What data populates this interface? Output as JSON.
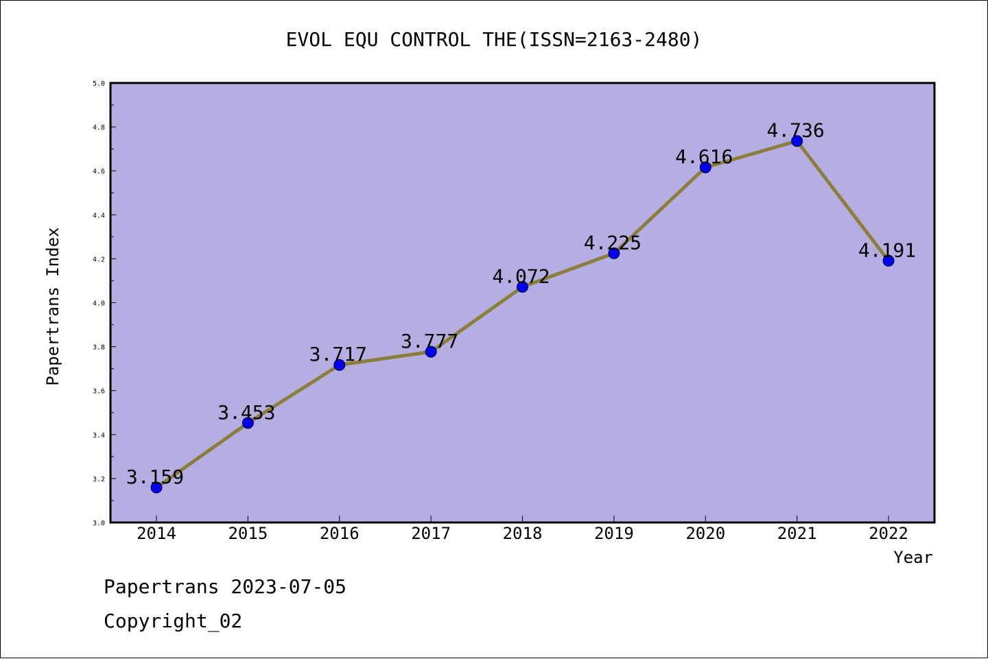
{
  "chart_data": {
    "type": "line",
    "title": "EVOL EQU CONTROL THE(ISSN=2163-2480)",
    "xlabel": "Year",
    "ylabel": "Papertrans Index",
    "categories": [
      "2014",
      "2015",
      "2016",
      "2017",
      "2018",
      "2019",
      "2020",
      "2021",
      "2022"
    ],
    "series": [
      {
        "values": [
          3.159,
          3.453,
          3.717,
          3.777,
          4.072,
          4.225,
          4.616,
          4.736,
          4.191
        ]
      }
    ],
    "data_labels": [
      "3.159",
      "3.453",
      "3.717",
      "3.777",
      "4.072",
      "4.225",
      "4.616",
      "4.736",
      "4.191"
    ],
    "ylim": [
      3.0,
      5.0
    ],
    "yticks": [
      "3.0",
      "3.2",
      "3.4",
      "3.6",
      "3.8",
      "4.0",
      "4.2",
      "4.4",
      "4.6",
      "4.8",
      "5.0"
    ],
    "grid": false,
    "colors": {
      "plot_background": "#b5aee2",
      "line": "#8b7d3a",
      "marker": "#0000ee"
    }
  },
  "footer": {
    "line1": "Papertrans 2023-07-05",
    "line2": "Copyright_02"
  }
}
